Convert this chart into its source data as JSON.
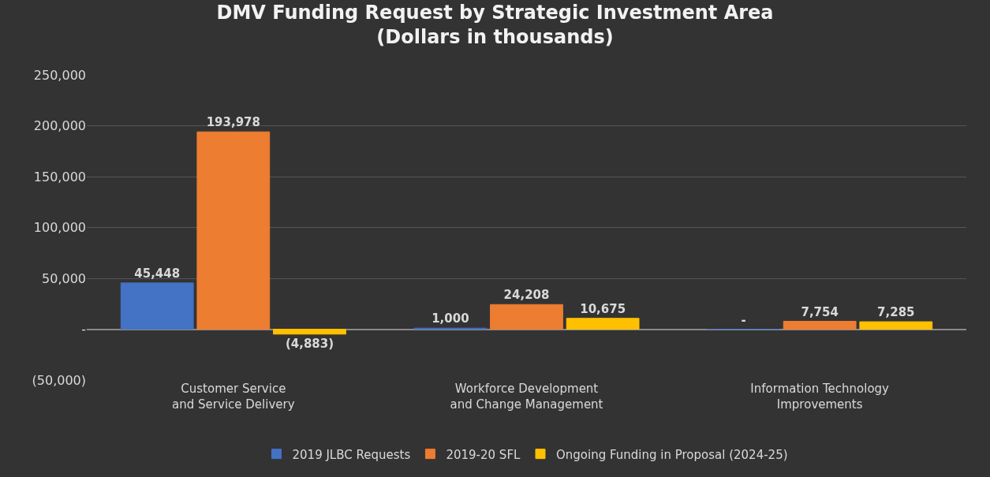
{
  "chart_data": {
    "type": "bar",
    "title": "DMV Funding Request by Strategic Investment Area\n(Dollars in thousands)",
    "categories": [
      "Customer Service and Service Delivery",
      "Workforce Development and Change Management",
      "Information Technology Improvements"
    ],
    "series": [
      {
        "name": "2019 JLBC Requests",
        "color": "#4472c4",
        "values": [
          45448,
          1000,
          0
        ],
        "value_labels": [
          "45,448",
          "1,000",
          "-"
        ]
      },
      {
        "name": "2019-20 SFL",
        "color": "#ed7d31",
        "values": [
          193978,
          24208,
          7754
        ],
        "value_labels": [
          "193,978",
          "24,208",
          "7,754"
        ]
      },
      {
        "name": "Ongoing Funding in Proposal (2024-25)",
        "color": "#ffc000",
        "values": [
          -4883,
          10675,
          7285
        ],
        "value_labels": [
          "(4,883)",
          "10,675",
          "7,285"
        ]
      }
    ],
    "ylim": [
      -50000,
      250000
    ],
    "yticks": [
      {
        "value": -50000,
        "label": "(50,000)"
      },
      {
        "value": 0,
        "label": "-"
      },
      {
        "value": 50000,
        "label": "50,000"
      },
      {
        "value": 100000,
        "label": "100,000"
      },
      {
        "value": 150000,
        "label": "150,000"
      },
      {
        "value": 200000,
        "label": "200,000"
      },
      {
        "value": 250000,
        "label": "250,000"
      }
    ],
    "grid": "y",
    "legend": "bottom"
  }
}
